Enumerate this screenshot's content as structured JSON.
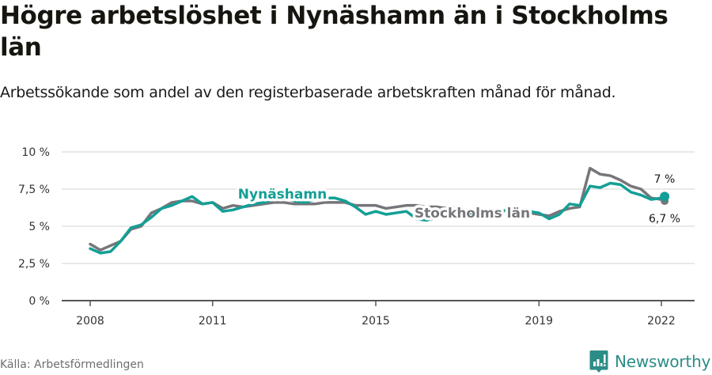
{
  "header": {
    "title": "Högre arbetslöshet i Nynäshamn än i Stockholms län",
    "subtitle": "Arbetssökande som andel av den registerbaserade arbetskraften månad för månad."
  },
  "footer": {
    "source": "Källa: Arbetsförmedlingen",
    "brand": "Newsworthy",
    "brand_icon": "bar-chart-speech-bubble-icon"
  },
  "colors": {
    "nynashamn": "#139f96",
    "stockholm": "#76757a",
    "grid": "#e2e2e2",
    "axis": "#555555",
    "brand": "#2c8c86"
  },
  "chart_data": {
    "type": "line",
    "title": "Högre arbetslöshet i Nynäshamn än i Stockholms län",
    "subtitle": "Arbetssökande som andel av den registerbaserade arbetskraften månad för månad.",
    "xlabel": "",
    "ylabel": "",
    "ylim": [
      0,
      10
    ],
    "y_ticks": [
      "0 %",
      "2,5 %",
      "5 %",
      "7,5 %",
      "10 %"
    ],
    "y_tick_values": [
      0,
      2.5,
      5,
      7.5,
      10
    ],
    "x_ticks": [
      "2008",
      "2011",
      "2015",
      "2019",
      "2022"
    ],
    "x_tick_values": [
      2008,
      2011,
      2015,
      2019,
      2022
    ],
    "grid": true,
    "legend_position": "inline labels",
    "x": [
      2008.0,
      2008.25,
      2008.5,
      2008.75,
      2009.0,
      2009.25,
      2009.5,
      2009.75,
      2010.0,
      2010.25,
      2010.5,
      2010.75,
      2011.0,
      2011.25,
      2011.5,
      2011.75,
      2012.0,
      2012.25,
      2012.5,
      2012.75,
      2013.0,
      2013.25,
      2013.5,
      2013.75,
      2014.0,
      2014.25,
      2014.5,
      2014.75,
      2015.0,
      2015.25,
      2015.5,
      2015.75,
      2016.0,
      2016.25,
      2016.5,
      2016.75,
      2017.0,
      2017.25,
      2017.5,
      2017.75,
      2018.0,
      2018.25,
      2018.5,
      2018.75,
      2019.0,
      2019.25,
      2019.5,
      2019.75,
      2020.0,
      2020.25,
      2020.5,
      2020.75,
      2021.0,
      2021.25,
      2021.5,
      2021.75,
      2022.0,
      2022.08
    ],
    "series": [
      {
        "name": "Nynäshamn",
        "color": "#139f96",
        "values": [
          3.5,
          3.2,
          3.3,
          4.0,
          4.9,
          5.1,
          5.6,
          6.2,
          6.4,
          6.7,
          7.0,
          6.5,
          6.6,
          6.0,
          6.1,
          6.3,
          6.5,
          6.6,
          6.8,
          6.9,
          6.7,
          6.6,
          6.8,
          6.9,
          6.9,
          6.7,
          6.3,
          5.8,
          6.0,
          5.8,
          5.9,
          6.0,
          5.5,
          5.4,
          5.6,
          5.8,
          5.9,
          5.8,
          5.9,
          6.0,
          6.0,
          6.1,
          6.0,
          6.0,
          5.9,
          5.5,
          5.8,
          6.5,
          6.4,
          7.7,
          7.6,
          7.9,
          7.8,
          7.3,
          7.1,
          6.8,
          6.9,
          7.0
        ]
      },
      {
        "name": "Stockholms län",
        "color": "#76757a",
        "values": [
          3.8,
          3.4,
          3.7,
          4.0,
          4.8,
          5.0,
          5.9,
          6.2,
          6.6,
          6.7,
          6.7,
          6.5,
          6.6,
          6.2,
          6.4,
          6.3,
          6.4,
          6.5,
          6.6,
          6.6,
          6.5,
          6.5,
          6.5,
          6.6,
          6.6,
          6.6,
          6.4,
          6.4,
          6.4,
          6.2,
          6.3,
          6.4,
          6.4,
          6.3,
          6.3,
          6.2,
          6.2,
          6.1,
          6.1,
          6.1,
          6.1,
          6.0,
          6.0,
          5.9,
          5.8,
          5.7,
          6.0,
          6.2,
          6.3,
          8.9,
          8.5,
          8.4,
          8.1,
          7.7,
          7.5,
          6.9,
          6.8,
          6.7
        ]
      }
    ],
    "annotations": [
      {
        "text": "Nynäshamn",
        "series": "Nynäshamn",
        "type": "series-label"
      },
      {
        "text": "Stockholms län",
        "series": "Stockholms län",
        "type": "series-label"
      },
      {
        "text": "7 %",
        "series": "Nynäshamn",
        "type": "end-value"
      },
      {
        "text": "6,7 %",
        "series": "Stockholms län",
        "type": "end-value"
      }
    ]
  }
}
